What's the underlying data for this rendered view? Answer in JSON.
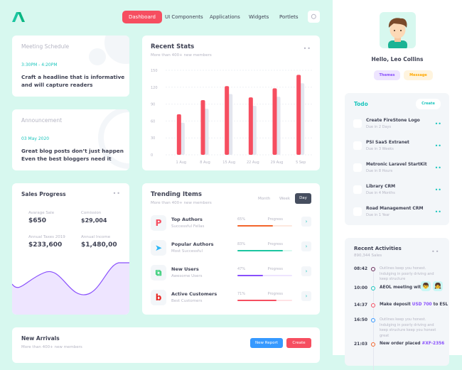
{
  "nav": {
    "items": [
      "Dashboard",
      "UI Components",
      "Applications",
      "Widgets",
      "Portlets"
    ],
    "active": "Dashboard"
  },
  "meeting": {
    "title": "Meeting Schedule",
    "time": "3:30PM - 4:20PM",
    "text1": "Craft a headline that is informative",
    "text2": "and will capture readers"
  },
  "announcement": {
    "title": "Announcement",
    "date": "03 May 2020",
    "text1": "Great blog posts don’t just happen",
    "text2": "Even the best bloggers need it"
  },
  "recent_stats": {
    "title": "Recent Stats",
    "subtitle": "More than 400+ new members"
  },
  "chart_data": {
    "type": "bar",
    "categories": [
      "1 Aug",
      "8 Aug",
      "15 Aug",
      "22 Aug",
      "29 Aug",
      "5 Sep"
    ],
    "series": [
      {
        "values": [
          72,
          97,
          122,
          102,
          118,
          142
        ],
        "color": "#f64e60"
      },
      {
        "values": [
          57,
          82,
          108,
          87,
          103,
          127
        ],
        "color": "#e4e6ef"
      }
    ],
    "ylim": [
      0,
      150
    ],
    "yticks": [
      "0",
      "30",
      "60",
      "90",
      "120",
      "150"
    ],
    "grid": true
  },
  "sales": {
    "title": "Sales Progress",
    "stats": [
      {
        "label": "Avarage Sale",
        "value": "$650"
      },
      {
        "label": "Comission",
        "value": "$29,004"
      },
      {
        "label": "Annual Taxes 2019",
        "value": "$233,600"
      },
      {
        "label": "Annual Income",
        "value": "$1,480,00"
      }
    ]
  },
  "trending": {
    "title": "Trending Items",
    "subtitle": "More than 400+ new members",
    "tabs": [
      "Month",
      "Week",
      "Day"
    ],
    "active_tab": "Day",
    "items": [
      {
        "name": "Top Authors",
        "sub": "Successful Fellas",
        "pct": "65%",
        "value": 65,
        "progress_label": "Progress",
        "color": "#f3652b",
        "track": "#fde8df",
        "icon": "P",
        "icon_color": "#f64e60"
      },
      {
        "name": "Popular Authors",
        "sub": "Most Successful",
        "pct": "83%",
        "value": 83,
        "progress_label": "Progress",
        "color": "#1bc5a0",
        "track": "#dcf8f0",
        "icon": "➤",
        "icon_color": "#29b6f6"
      },
      {
        "name": "New Users",
        "sub": "Awesome Users",
        "pct": "47%",
        "value": 47,
        "progress_label": "Progress",
        "color": "#8950fc",
        "track": "#eee5ff",
        "icon": "⧉",
        "icon_color": "#2ecc71"
      },
      {
        "name": "Active Customers",
        "sub": "Best Customers",
        "pct": "71%",
        "value": 71,
        "progress_label": "Progress",
        "color": "#f64e60",
        "track": "#ffe2e5",
        "icon": "b",
        "icon_color": "#e8231f"
      }
    ]
  },
  "arrivals": {
    "title": "New Arrivals",
    "subtitle": "More than 400+ new members",
    "new_report": "New Report",
    "create": "Create"
  },
  "profile": {
    "greeting": "Hello, Leo Collins",
    "themes": "Themes",
    "message": "Message"
  },
  "todo": {
    "title": "Todo",
    "create": "Create",
    "items": [
      {
        "name": "Create FireStone Logo",
        "due": "Due in 2 Days"
      },
      {
        "name": "PSI SaaS Extranet",
        "due": "Due in 3 Weeks"
      },
      {
        "name": "Metronic Laravel StartKit",
        "due": "Due in 8 Hours"
      },
      {
        "name": "Library CRM",
        "due": "Due in 4 Months"
      },
      {
        "name": "Road Management CRM",
        "due": "Due in 1 Year"
      }
    ]
  },
  "activities": {
    "title": "Recent Activities",
    "subtitle": "890,344 Sales",
    "items": [
      {
        "time": "08:42",
        "text": "Outlines keep you honest. Indulging in poorly driving and keep structure",
        "color": "#6b2c5a"
      },
      {
        "time": "10:00",
        "bold": "AEOL meeting with",
        "color": "#1bc5bd"
      },
      {
        "time": "14:37",
        "bold_a": "Make deposit ",
        "highlight": "USD 700",
        "bold_b": " to ESL",
        "color": "#f64e60"
      },
      {
        "time": "16:50",
        "text": "Outlines keep you honest. Indulging in poorly driving and keep structure keep you honest great",
        "color": "#3699ff"
      },
      {
        "time": "21:03",
        "bold_a": "New order placed ",
        "highlight": "#XF-2356",
        "color": "#f3652b"
      }
    ]
  }
}
